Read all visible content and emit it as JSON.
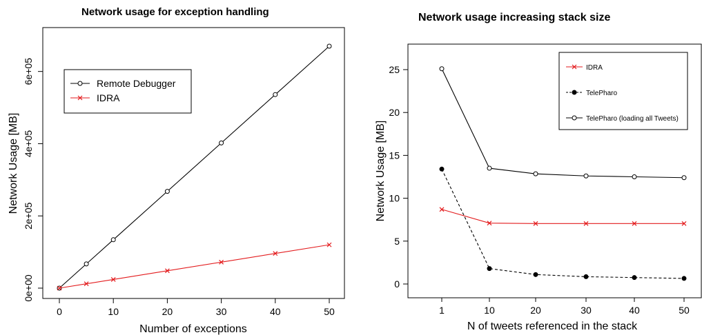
{
  "chart_data": [
    {
      "type": "line",
      "title": "Network usage for exception handling",
      "xlabel": "Number of exceptions",
      "ylabel": "Network Usage [MB]",
      "x_ticks": [
        0,
        10,
        20,
        30,
        40,
        50
      ],
      "y_ticks": [
        0,
        200000,
        400000,
        600000
      ],
      "y_tick_labels": [
        "0e+00",
        "2e+05",
        "4e+05",
        "6e+05"
      ],
      "xlim": [
        0,
        50
      ],
      "ylim": [
        0,
        670000
      ],
      "grid": false,
      "legend_position": "top-left",
      "x": [
        0,
        5,
        10,
        20,
        30,
        40,
        50
      ],
      "series": [
        {
          "name": "Remote Debugger",
          "color": "#000000",
          "marker": "open-circle",
          "line": "solid",
          "values": [
            0,
            67000,
            134000,
            268000,
            402000,
            536000,
            670000
          ]
        },
        {
          "name": "IDRA",
          "color": "#e31a1c",
          "marker": "cross",
          "line": "solid",
          "values": [
            0,
            12000,
            24000,
            48000,
            72000,
            96000,
            120000
          ]
        }
      ]
    },
    {
      "type": "line",
      "title": "Network usage increasing stack size",
      "xlabel": "N of tweets referenced in the stack",
      "ylabel": "Network Usage [MB]",
      "categories": [
        "1",
        "10",
        "20",
        "30",
        "40",
        "50"
      ],
      "y_ticks": [
        0,
        5,
        10,
        15,
        20,
        25
      ],
      "ylim": [
        -1,
        27
      ],
      "grid": false,
      "legend_position": "top-right",
      "series": [
        {
          "name": "IDRA",
          "color": "#e31a1c",
          "marker": "cross",
          "line": "solid",
          "values": [
            8.7,
            7.1,
            7.05,
            7.05,
            7.05,
            7.05
          ]
        },
        {
          "name": "TelePharo",
          "color": "#000000",
          "marker": "filled-circle",
          "line": "dashed",
          "values": [
            13.4,
            1.8,
            1.1,
            0.85,
            0.75,
            0.65
          ]
        },
        {
          "name": "TelePharo (loading all Tweets)",
          "color": "#000000",
          "marker": "open-circle",
          "line": "solid",
          "values": [
            25.1,
            13.5,
            12.85,
            12.6,
            12.5,
            12.4
          ]
        }
      ]
    }
  ]
}
